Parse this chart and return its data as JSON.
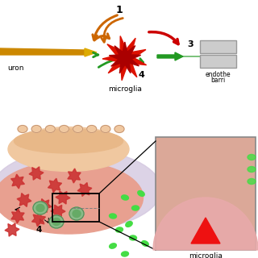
{
  "bg_color": "#ffffff",
  "top": {
    "neuron_body_color": "#cc8800",
    "neuron_tip_color": "#ddaa00",
    "microglia_color1": "#dd1100",
    "microglia_color2": "#aa0000",
    "arrow_orange": "#cc6600",
    "arrow_green": "#229922",
    "arrow_red": "#cc0000",
    "rect_color": "#cccccc",
    "rect_edge": "#999999",
    "label_microglia": "microglia",
    "label_neuron": "uron",
    "label_endo1": "endothe",
    "label_endo2": "barri"
  },
  "bottom": {
    "lavender_bg": "#d4c8e0",
    "tissue_pink": "#e8a090",
    "vessel_tan": "#f0c8a0",
    "vessel_tan2": "#e8b888",
    "cell_green_outer": "#88bb88",
    "cell_green_inner": "#66aa66",
    "amyloid_red": "#cc3333",
    "green_dot": "#44dd44",
    "zoom_bg": "#e0a898",
    "zoom_semicircle": "#d49080",
    "zoom_microglia": "#ee1111",
    "label_microglia_zoom": "microglia",
    "label_4": "4"
  }
}
